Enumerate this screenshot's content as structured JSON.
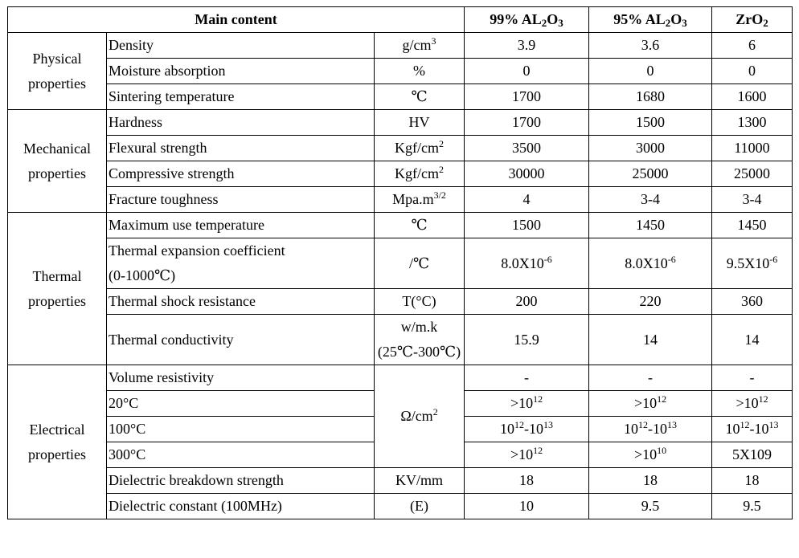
{
  "header": {
    "main_content": "Main content",
    "col1_prefix": "99% AL",
    "col1_sub2": "2",
    "col1_mid": "O",
    "col1_sub3": "3",
    "col2_prefix": "95% AL",
    "col2_sub2": "2",
    "col2_mid": "O",
    "col2_sub3": "3",
    "col3_prefix": "ZrO",
    "col3_sub2": "2"
  },
  "categories": {
    "physical_1": "Physical",
    "physical_2": "properties",
    "mechanical_1": "Mechanical",
    "mechanical_2": "properties",
    "thermal_1": "Thermal",
    "thermal_2": "properties",
    "electrical_1": "Electrical",
    "electrical_2": "properties"
  },
  "rows": {
    "density": {
      "name": "Density",
      "unit": "g/cm",
      "unit_sup": "3",
      "v1": "3.9",
      "v2": "3.6",
      "v3": "6"
    },
    "moisture": {
      "name": "Moisture absorption",
      "unit": "%",
      "v1": "0",
      "v2": "0",
      "v3": "0"
    },
    "sintering": {
      "name": "Sintering temperature",
      "unit": "℃",
      "v1": "1700",
      "v2": "1680",
      "v3": "1600"
    },
    "hardness": {
      "name": "Hardness",
      "unit": "HV",
      "v1": "1700",
      "v2": "1500",
      "v3": "1300"
    },
    "flexural": {
      "name": "Flexural strength",
      "unit": "Kgf/cm",
      "unit_sup": "2",
      "v1": "3500",
      "v2": "3000",
      "v3": "11000"
    },
    "compressive": {
      "name": "Compressive strength",
      "unit": "Kgf/cm",
      "unit_sup": "2",
      "v1": "30000",
      "v2": "25000",
      "v3": "25000"
    },
    "fracture": {
      "name": "Fracture toughness",
      "unit": "Mpa.m",
      "unit_sup": "3/2",
      "v1": "4",
      "v2": "3-4",
      "v3": "3-4"
    },
    "max_temp": {
      "name": "Maximum use temperature",
      "unit": "℃",
      "v1": "1500",
      "v2": "1450",
      "v3": "1450"
    },
    "expansion": {
      "name_1": "Thermal expansion coefficient",
      "name_2": "(0-1000℃)",
      "unit": "/℃",
      "v1": "8.0X10",
      "v1_sup": "-6",
      "v2": "8.0X10",
      "v2_sup": "-6",
      "v3": "9.5X10",
      "v3_sup": "-6"
    },
    "shock": {
      "name": "Thermal shock resistance",
      "unit": "T(°C)",
      "v1": "200",
      "v2": "220",
      "v3": "360"
    },
    "conductivity": {
      "name": "Thermal conductivity",
      "unit_1": "w/m.k",
      "unit_2": "(25℃-300℃)",
      "v1": "15.9",
      "v2": "14",
      "v3": "14"
    },
    "volume": {
      "name": "Volume resistivity",
      "v1": "-",
      "v2": "-",
      "v3": "-"
    },
    "resist_unit": {
      "unit": "Ω/cm",
      "unit_sup": "2"
    },
    "r20": {
      "name": "20°C",
      "v1": ">10",
      "v1_sup": "12",
      "v2": ">10",
      "v2_sup": "12",
      "v3": ">10",
      "v3_sup": "12"
    },
    "r100": {
      "name": "100°C",
      "v1_a": "10",
      "v1_a_sup": "12",
      "v1_b": "-10",
      "v1_b_sup": "13",
      "v2_a": "10",
      "v2_a_sup": "12",
      "v2_b": "-10",
      "v2_b_sup": "13",
      "v3_a": "10",
      "v3_a_sup": "12",
      "v3_b": "-10",
      "v3_b_sup": "13"
    },
    "r300": {
      "name": "300°C",
      "v1": ">10",
      "v1_sup": "12",
      "v2": ">10",
      "v2_sup": "10",
      "v3": "5X109"
    },
    "breakdown": {
      "name": "Dielectric breakdown strength",
      "unit": "KV/mm",
      "v1": "18",
      "v2": "18",
      "v3": "18"
    },
    "dielectric": {
      "name": "Dielectric constant (100MHz)",
      "unit": "(E)",
      "v1": "10",
      "v2": "9.5",
      "v3": "9.5"
    }
  }
}
